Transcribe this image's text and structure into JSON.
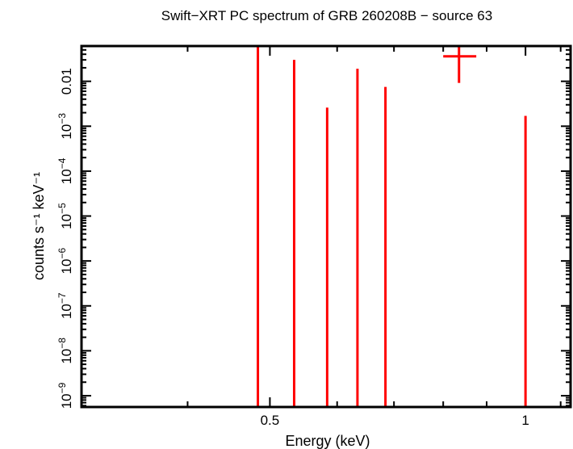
{
  "chart_data": {
    "type": "scatter",
    "title": "Swift−XRT PC spectrum of GRB 260208B − source 63",
    "xlabel": "Energy (keV)",
    "ylabel": "counts s⁻¹ keV⁻¹",
    "xscale": "log",
    "yscale": "log",
    "xlim": [
      0.3,
      1.13
    ],
    "ylim": [
      5.6e-10,
      0.061
    ],
    "grid": false,
    "x_tick_labels": [
      {
        "value": 0.5,
        "label": "0.5"
      },
      {
        "value": 1,
        "label": "1"
      }
    ],
    "y_tick_labels": [
      {
        "value": 0.01,
        "base": "0.01",
        "exp": ""
      },
      {
        "value": 0.001,
        "base": "10",
        "exp": "−3"
      },
      {
        "value": 0.0001,
        "base": "10",
        "exp": "−4"
      },
      {
        "value": 1e-05,
        "base": "10",
        "exp": "−5"
      },
      {
        "value": 1e-06,
        "base": "10",
        "exp": "−6"
      },
      {
        "value": 1e-07,
        "base": "10",
        "exp": "−7"
      },
      {
        "value": 1e-08,
        "base": "10",
        "exp": "−8"
      },
      {
        "value": 1e-09,
        "base": "10",
        "exp": "−9"
      }
    ],
    "series": [
      {
        "color": "#ff0000",
        "points": [
          {
            "x": 0.484,
            "y": 0,
            "y_upper": 0.07
          },
          {
            "x": 0.534,
            "y": 0,
            "y_upper": 0.03
          },
          {
            "x": 0.584,
            "y": 0,
            "y_upper": 0.0026
          },
          {
            "x": 0.634,
            "y": 0,
            "y_upper": 0.019
          },
          {
            "x": 0.684,
            "y": 0,
            "y_upper": 0.0075
          },
          {
            "x": 0.835,
            "x_low": 0.8,
            "x_high": 0.875,
            "y": 0.036,
            "y_lower": 0.0092,
            "y_upper": 0.07
          },
          {
            "x": 1.0,
            "y": 0,
            "y_upper": 0.0017
          }
        ]
      }
    ]
  }
}
